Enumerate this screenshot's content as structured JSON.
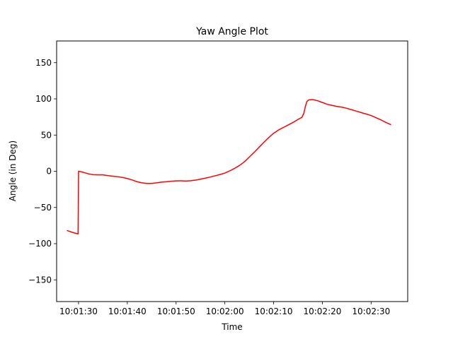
{
  "chart_data": {
    "type": "line",
    "title": "Yaw Angle Plot",
    "xlabel": "Time",
    "ylabel": "Angle (in Deg)",
    "x_ticks": [
      {
        "value": "10:01:30",
        "label": "10:01:30"
      },
      {
        "value": "10:01:40",
        "label": "10:01:40"
      },
      {
        "value": "10:01:50",
        "label": "10:01:50"
      },
      {
        "value": "10:02:00",
        "label": "10:02:00"
      },
      {
        "value": "10:02:10",
        "label": "10:02:10"
      },
      {
        "value": "10:02:20",
        "label": "10:02:20"
      },
      {
        "value": "10:02:30",
        "label": "10:02:30"
      }
    ],
    "y_ticks": [
      {
        "value": -150,
        "label": "−150"
      },
      {
        "value": -100,
        "label": "−100"
      },
      {
        "value": -50,
        "label": "−50"
      },
      {
        "value": 0,
        "label": "0"
      },
      {
        "value": 50,
        "label": "50"
      },
      {
        "value": 100,
        "label": "100"
      },
      {
        "value": 150,
        "label": "150"
      }
    ],
    "xlim": [
      "10:01:25.5",
      "10:02:37.5"
    ],
    "ylim": [
      -180,
      180
    ],
    "grid": false,
    "series": [
      {
        "color": "#ff0000",
        "points": [
          [
            "10:01:27.7",
            -82
          ],
          [
            "10:01:29.0",
            -85
          ],
          [
            "10:01:29.9",
            -86.5
          ],
          [
            "10:01:30.0",
            0
          ],
          [
            "10:01:31.0",
            -1.5
          ],
          [
            "10:01:32.0",
            -3.5
          ],
          [
            "10:01:33.0",
            -4.7
          ],
          [
            "10:01:34.0",
            -5
          ],
          [
            "10:01:35.0",
            -5
          ],
          [
            "10:01:36.0",
            -6
          ],
          [
            "10:01:37.0",
            -6.8
          ],
          [
            "10:01:38.0",
            -7.5
          ],
          [
            "10:01:39.0",
            -8.5
          ],
          [
            "10:01:40.0",
            -10
          ],
          [
            "10:01:41.0",
            -12
          ],
          [
            "10:01:42.0",
            -14.5
          ],
          [
            "10:01:43.0",
            -16
          ],
          [
            "10:01:44.0",
            -16.8
          ],
          [
            "10:01:45.0",
            -16.8
          ],
          [
            "10:01:46.0",
            -16
          ],
          [
            "10:01:47.0",
            -15
          ],
          [
            "10:01:48.0",
            -14.5
          ],
          [
            "10:01:49.0",
            -13.8
          ],
          [
            "10:01:50.0",
            -13.3
          ],
          [
            "10:01:51.0",
            -13.2
          ],
          [
            "10:01:52.0",
            -13.5
          ],
          [
            "10:01:53.0",
            -13
          ],
          [
            "10:01:54.0",
            -12.2
          ],
          [
            "10:01:55.0",
            -11
          ],
          [
            "10:01:56.0",
            -9.5
          ],
          [
            "10:01:57.0",
            -8
          ],
          [
            "10:01:58.0",
            -6.3
          ],
          [
            "10:01:59.0",
            -4.5
          ],
          [
            "10:02:00.0",
            -2.5
          ],
          [
            "10:02:01.0",
            0.5
          ],
          [
            "10:02:02.0",
            4
          ],
          [
            "10:02:03.0",
            8
          ],
          [
            "10:02:04.0",
            13
          ],
          [
            "10:02:05.0",
            19.5
          ],
          [
            "10:02:06.0",
            26
          ],
          [
            "10:02:07.0",
            33
          ],
          [
            "10:02:08.0",
            40
          ],
          [
            "10:02:09.0",
            46.5
          ],
          [
            "10:02:10.0",
            52.5
          ],
          [
            "10:02:11.0",
            57
          ],
          [
            "10:02:12.0",
            60.5
          ],
          [
            "10:02:13.0",
            64
          ],
          [
            "10:02:14.0",
            67.5
          ],
          [
            "10:02:15.0",
            71.5
          ],
          [
            "10:02:15.8",
            74.5
          ],
          [
            "10:02:16.2",
            80
          ],
          [
            "10:02:16.5",
            89
          ],
          [
            "10:02:16.8",
            96
          ],
          [
            "10:02:17.2",
            98.5
          ],
          [
            "10:02:18.0",
            99
          ],
          [
            "10:02:19.0",
            97.5
          ],
          [
            "10:02:20.0",
            95
          ],
          [
            "10:02:21.0",
            92.5
          ],
          [
            "10:02:22.0",
            91
          ],
          [
            "10:02:23.0",
            89.5
          ],
          [
            "10:02:24.0",
            88.5
          ],
          [
            "10:02:25.0",
            87
          ],
          [
            "10:02:26.0",
            85
          ],
          [
            "10:02:27.0",
            83
          ],
          [
            "10:02:28.0",
            81
          ],
          [
            "10:02:29.0",
            79
          ],
          [
            "10:02:30.0",
            77
          ],
          [
            "10:02:31.0",
            74
          ],
          [
            "10:02:32.0",
            71
          ],
          [
            "10:02:33.0",
            67.5
          ],
          [
            "10:02:34.0",
            64.5
          ]
        ]
      }
    ]
  }
}
